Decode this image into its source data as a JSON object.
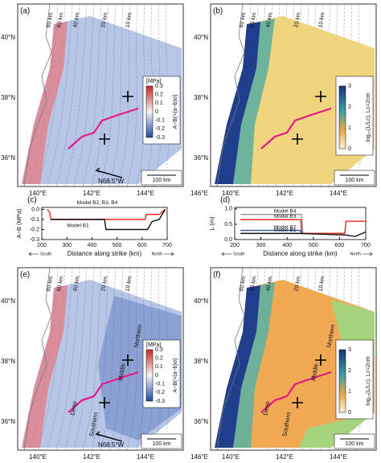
{
  "maps": {
    "a": {
      "label": "(a)",
      "kind": "stress",
      "depths": [
        "80 km",
        "60 km",
        "40 km",
        "20 km",
        "10 km"
      ],
      "lats": [
        "40°N",
        "38°N",
        "36°N"
      ],
      "lons": [
        "140°E",
        "142°E",
        "144°E",
        "146°E"
      ],
      "colorbar": {
        "unit": "[MPa]",
        "title": "A−B(=(a−b)σ)",
        "ticks": [
          "0.3",
          "0.2",
          "0.1",
          "0",
          "-0.1",
          "-0.2",
          "-0.3"
        ]
      },
      "scale": "100 km",
      "direction": "N68.5°W",
      "regions": []
    },
    "b": {
      "label": "(b)",
      "kind": "length",
      "depths": [
        "80 km",
        "60 km",
        "40 km",
        "20 km",
        "10 km"
      ],
      "lats": [
        "40°N",
        "38°N",
        "36°N"
      ],
      "lons": [
        "140°E",
        "142°E",
        "144°E",
        "146°E"
      ],
      "colorbar": {
        "title": "log₁₀(L/Lc), Lc=2cm",
        "ticks": [
          "3",
          "2",
          "1",
          "0"
        ]
      },
      "scale": "100 km",
      "regions": []
    },
    "e": {
      "label": "(e)",
      "kind": "stress",
      "depths": [
        "80 km",
        "60 km",
        "40 km",
        "20 km",
        "10 km"
      ],
      "lats": [
        "40°N",
        "38°N",
        "36°N"
      ],
      "lons": [
        "140°E",
        "142°E",
        "144°E",
        "146°E"
      ],
      "colorbar": {
        "unit": "[MPa]",
        "title": "A−B(=(a−b)σ)",
        "ticks": [
          "0.3",
          "0.2",
          "0.1",
          "0",
          "-0.1",
          "-0.2",
          "-0.3"
        ]
      },
      "scale": "100 km",
      "direction": "N68.5°W",
      "regions": [
        "Northern",
        "Middle",
        "Deep",
        "Southern"
      ]
    },
    "f": {
      "label": "(f)",
      "kind": "length",
      "depths": [
        "80 km",
        "60 km",
        "40 km",
        "20 km",
        "10 km"
      ],
      "lats": [
        "40°N",
        "38°N",
        "36°N"
      ],
      "lons": [
        "140°E",
        "142°E",
        "144°E",
        "146°E"
      ],
      "colorbar": {
        "title": "log₁₀(L/Lc), Lc=2cm",
        "ticks": [
          "3",
          "2",
          "1",
          "0"
        ]
      },
      "scale": "100 km",
      "regions": [
        "Northern",
        "Middle",
        "Deep",
        "Southern"
      ]
    }
  },
  "chart_data": [
    {
      "type": "line",
      "label": "(c)",
      "ylabel": "A−B (MPa)",
      "xlabel": "Distance along strike (km)",
      "south": "South",
      "north": "North",
      "xlim": [
        200,
        700
      ],
      "xticks": [
        200,
        300,
        400,
        500,
        600,
        700
      ],
      "ylim": [
        -0.3,
        0.02
      ],
      "yticks": [
        {
          "value": 0,
          "label": "0.0"
        },
        {
          "value": -0.1,
          "label": "-0.1"
        },
        {
          "value": -0.2,
          "label": "-0.2"
        },
        {
          "value": -0.3,
          "label": "-0.3"
        }
      ],
      "series": [
        {
          "name": "Model B2, B3, B4",
          "color": "#e8291c",
          "x": [
            222,
            232,
            236,
            612,
            616,
            668,
            692
          ],
          "values": [
            0,
            -0.03,
            -0.1,
            -0.1,
            -0.05,
            -0.05,
            0
          ]
        },
        {
          "name": "Model B1",
          "color": "#111111",
          "x": [
            236,
            450,
            456,
            622,
            640,
            668,
            692
          ],
          "values": [
            -0.1,
            -0.1,
            -0.2,
            -0.2,
            -0.12,
            -0.1,
            0
          ]
        }
      ]
    },
    {
      "type": "line",
      "label": "(d)",
      "ylabel": "L (m)",
      "xlabel": "Distance along strike (km)",
      "south": "South",
      "north": "North",
      "xlim": [
        200,
        700
      ],
      "xticks": [
        200,
        300,
        400,
        500,
        600,
        700
      ],
      "ylim": [
        0,
        1.05
      ],
      "yticks": [
        {
          "value": 0,
          "label": "0.0"
        },
        {
          "value": 0.5,
          "label": "0.5"
        },
        {
          "value": 1,
          "label": "1.0"
        }
      ],
      "series": [
        {
          "name": "Model B4",
          "color": "#999999",
          "x": [
            222,
            455,
            460,
            600
          ],
          "values": [
            0.82,
            0.82,
            0.2,
            0.2
          ]
        },
        {
          "name": "Model B3",
          "color": "#e8291c",
          "x": [
            222,
            452,
            456,
            620,
            625,
            700
          ],
          "values": [
            0.65,
            0.65,
            0.2,
            0.2,
            0.6,
            0.6
          ]
        },
        {
          "name": "Model B2",
          "color": "#2a4fb0",
          "x": [
            222,
            450,
            455
          ],
          "values": [
            0.3,
            0.3,
            0.2
          ]
        },
        {
          "name": "Model B1",
          "color": "#111111",
          "x": [
            222,
            450,
            620,
            660,
            700
          ],
          "values": [
            0.2,
            0.2,
            0.15,
            0.1,
            0.25
          ]
        }
      ]
    }
  ]
}
